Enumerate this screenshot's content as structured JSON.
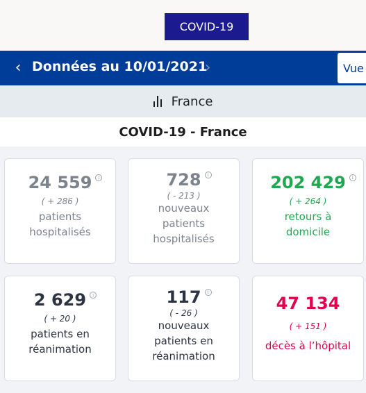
{
  "header": {
    "badge": "COVID-19"
  },
  "nav": {
    "prev_icon": "chevron-left-icon",
    "title": "Données au 10/01/2021",
    "next_icon": "chevron-right-icon",
    "view_button": "Vue"
  },
  "region": {
    "icon": "bar-chart-icon",
    "label": "France"
  },
  "section_title": "COVID-19 - France",
  "cards": [
    {
      "value": "24 559",
      "delta": "( + 286 )",
      "label_lines": [
        "patients",
        "hospitalisés"
      ],
      "info_icon": "info-icon"
    },
    {
      "value": "728",
      "delta": "( - 213 )",
      "label_lines": [
        "nouveaux",
        "patients",
        "hospitalisés"
      ],
      "info_icon": "info-icon"
    },
    {
      "value": "202 429",
      "delta": "( + 264 )",
      "label_lines": [
        "retours à",
        "domicile"
      ],
      "info_icon": "info-icon"
    },
    {
      "value": "2 629",
      "delta": "( + 20 )",
      "label_lines": [
        "patients en",
        "réanimation"
      ],
      "info_icon": "info-icon"
    },
    {
      "value": "117",
      "delta": "( - 26 )",
      "label_lines": [
        "nouveaux",
        "patients en",
        "réanimation"
      ],
      "info_icon": "info-icon"
    },
    {
      "value": "47 134",
      "delta": "( + 151 )",
      "label_lines": [
        "décès à l’hôpital"
      ]
    }
  ],
  "colors": {
    "badge": "#1c1a8f",
    "nav": "#003d99",
    "green": "#1fa84f",
    "red": "#e0004d",
    "grey": "#7b838c"
  }
}
